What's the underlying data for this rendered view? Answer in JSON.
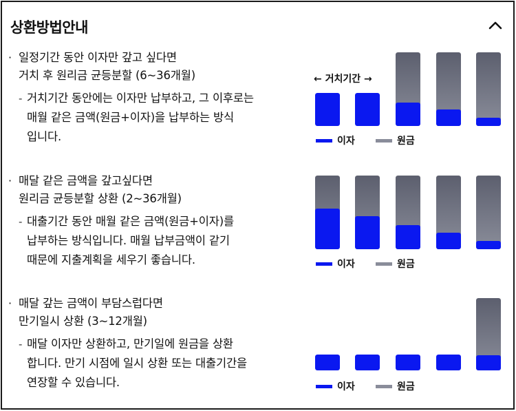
{
  "header": {
    "title": "상환방법안내",
    "collapse_icon": "chevron-up-icon"
  },
  "legend": {
    "interest": "이자",
    "principal": "원금"
  },
  "colors": {
    "interest": "#0a18f0",
    "principal": "#8a8d9a"
  },
  "sections": [
    {
      "bullet": "·",
      "title_line1": "일정기간 동안 이자만 갚고 싶다면",
      "title_line2": "거치 후 원리금 균등분할 (6~36개월)",
      "dash": "-",
      "desc_line1": "거치기간 동안에는 이자만 납부하고, 그 이후로는",
      "desc_line2": "매월 같은 금액(원금+이자)을 납부하는 방식",
      "desc_line3": "입니다.",
      "grace_label": "← 거치기간 →",
      "bars_interest_fraction": [
        1.0,
        1.0,
        0.32,
        0.22,
        0.11
      ]
    },
    {
      "bullet": "·",
      "title_line1": "매달 같은 금액을 갚고싶다면",
      "title_line2": "원리금 균등분할 상환 (2~36개월)",
      "dash": "-",
      "desc_line1": "대출기간 동안 매월 같은 금액(원금+이자)를",
      "desc_line2": "납부하는 방식입니다. 매월 납부금액이 같기",
      "desc_line3": "때문에 지출계획을 세우기 좋습니다.",
      "bars_interest_fraction": [
        0.55,
        0.45,
        0.33,
        0.22,
        0.11
      ]
    },
    {
      "bullet": "·",
      "title_line1": "매달 갚는 금액이 부담스럽다면",
      "title_line2": "만기일시 상환 (3~12개월)",
      "dash": "-",
      "desc_line1": "매달 이자만 상환하고, 만기일에 원금을 상환",
      "desc_line2": "합니다. 만기 시점에 일시 상환 또는 대출기간을",
      "desc_line3": "연장할 수 있습니다.",
      "bars_interest_fraction": [
        1.0,
        1.0,
        1.0,
        1.0,
        0.21
      ]
    }
  ]
}
